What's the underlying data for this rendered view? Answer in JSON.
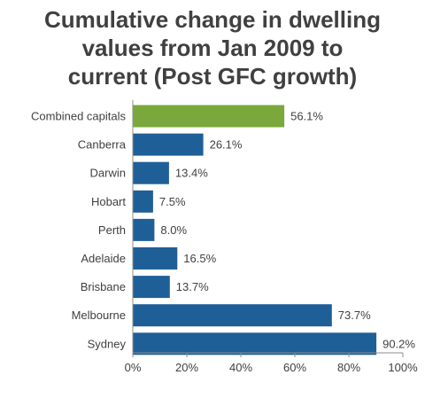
{
  "chart_data": {
    "type": "bar",
    "orientation": "horizontal",
    "title_lines": [
      "Cumulative change in dwelling",
      "values from Jan 2009 to",
      "current (Post GFC growth)"
    ],
    "categories": [
      "Combined capitals",
      "Canberra",
      "Darwin",
      "Hobart",
      "Perth",
      "Adelaide",
      "Brisbane",
      "Melbourne",
      "Sydney"
    ],
    "values": [
      56.1,
      26.1,
      13.4,
      7.5,
      8.0,
      16.5,
      13.7,
      73.7,
      90.2
    ],
    "value_labels": [
      "56.1%",
      "26.1%",
      "13.4%",
      "7.5%",
      "8.0%",
      "16.5%",
      "13.7%",
      "73.7%",
      "90.2%"
    ],
    "xlim": [
      0,
      100
    ],
    "x_ticks": [
      "0%",
      "20%",
      "40%",
      "60%",
      "80%",
      "100%"
    ],
    "xlabel": "",
    "ylabel": "",
    "grid": false,
    "colors": {
      "highlight": "#7aa83c",
      "bar": "#1f5f97",
      "axis": "#8c8c8c",
      "text": "#404040"
    },
    "highlight_categories": [
      "Combined capitals"
    ]
  }
}
